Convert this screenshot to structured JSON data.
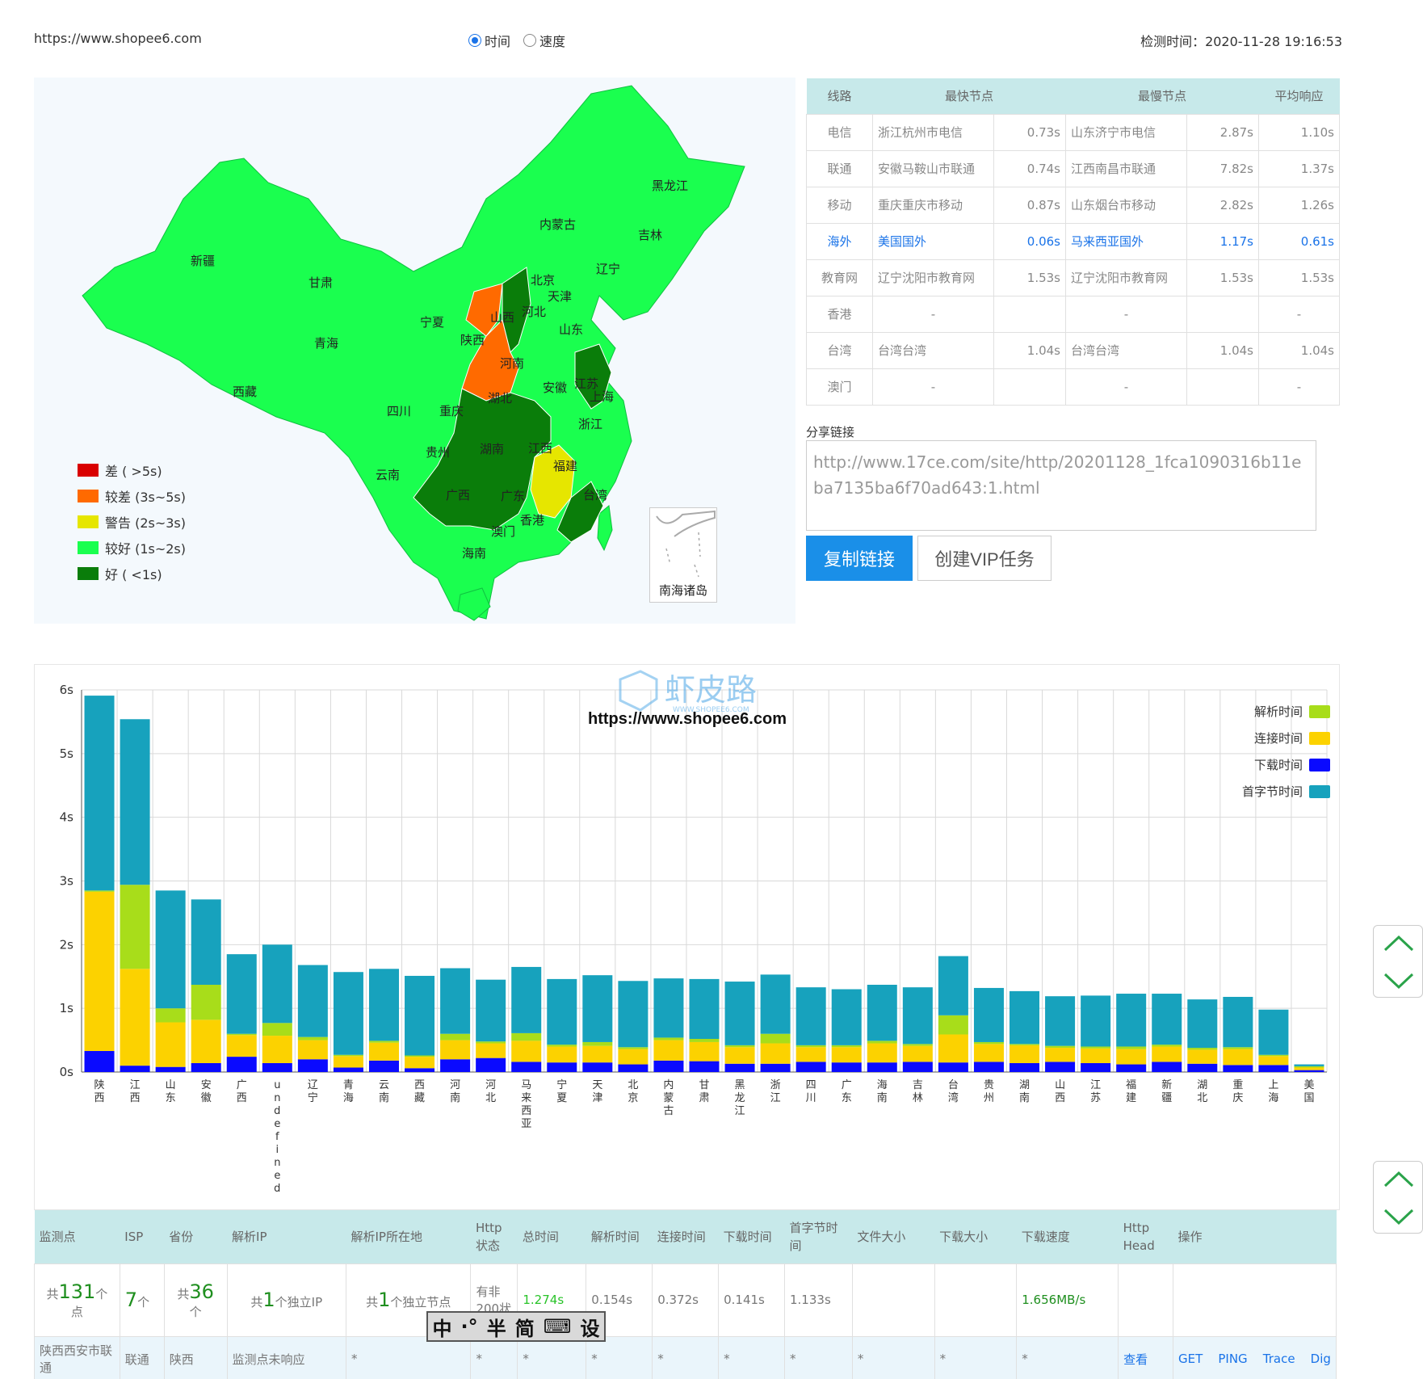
{
  "header": {
    "url": "https://www.shopee6.com",
    "radio_time": "时间",
    "radio_speed": "速度",
    "check_time": "检测时间：2020-11-28 19:16:53"
  },
  "map": {
    "legend": [
      {
        "label": "差 ( >5s)",
        "color": "#d90000"
      },
      {
        "label": "较差 (3s~5s)",
        "color": "#ff6a00"
      },
      {
        "label": "警告 (2s~3s)",
        "color": "#e6e600"
      },
      {
        "label": "较好 (1s~2s)",
        "color": "#1aff4f"
      },
      {
        "label": "好 ( <1s)",
        "color": "#0a7d0a"
      }
    ],
    "provinces": [
      "黑龙江",
      "吉林",
      "内蒙古",
      "辽宁",
      "新疆",
      "甘肃",
      "北京",
      "天津",
      "宁夏",
      "山西",
      "河北",
      "青海",
      "陕西",
      "山东",
      "河南",
      "西藏",
      "江苏",
      "安徽",
      "上海",
      "四川",
      "重庆",
      "湖北",
      "浙江",
      "贵州",
      "湖南",
      "江西",
      "云南",
      "福建",
      "广西",
      "广东",
      "台湾",
      "香港",
      "澳门",
      "海南"
    ],
    "nanhai": "南海诸岛"
  },
  "line_table": {
    "headers": [
      "线路",
      "最快节点",
      "最慢节点",
      "平均响应"
    ],
    "rows": [
      {
        "line": "电信",
        "fast": "浙江杭州市电信",
        "fast_t": "0.73s",
        "slow": "山东济宁市电信",
        "slow_t": "2.87s",
        "avg": "1.10s"
      },
      {
        "line": "联通",
        "fast": "安徽马鞍山市联通",
        "fast_t": "0.74s",
        "slow": "江西南昌市联通",
        "slow_t": "7.82s",
        "avg": "1.37s"
      },
      {
        "line": "移动",
        "fast": "重庆重庆市移动",
        "fast_t": "0.87s",
        "slow": "山东烟台市移动",
        "slow_t": "2.82s",
        "avg": "1.26s"
      },
      {
        "line": "海外",
        "fast": "美国国外",
        "fast_t": "0.06s",
        "slow": "马来西亚国外",
        "slow_t": "1.17s",
        "avg": "0.61s"
      },
      {
        "line": "教育网",
        "fast": "辽宁沈阳市教育网",
        "fast_t": "1.53s",
        "slow": "辽宁沈阳市教育网",
        "slow_t": "1.53s",
        "avg": "1.53s"
      },
      {
        "line": "香港",
        "fast": "-",
        "fast_t": "",
        "slow": "-",
        "slow_t": "",
        "avg": "-"
      },
      {
        "line": "台湾",
        "fast": "台湾台湾",
        "fast_t": "1.04s",
        "slow": "台湾台湾",
        "slow_t": "1.04s",
        "avg": "1.04s"
      },
      {
        "line": "澳门",
        "fast": "-",
        "fast_t": "",
        "slow": "-",
        "slow_t": "",
        "avg": "-"
      }
    ]
  },
  "share": {
    "label": "分享链接",
    "url": "http://www.17ce.com/site/http/20201128_1fca1090316b11eba7135ba6f70ad643:1.html",
    "copy_btn": "复制链接",
    "vip_btn": "创建VIP任务"
  },
  "chart_data": {
    "type": "bar",
    "stacked": true,
    "title": "https://www.shopee6.com",
    "watermark": "虾皮路",
    "watermark_sub": "WWW.SHOPEE6.COM",
    "ylim": [
      0,
      6
    ],
    "yticks": [
      "0s",
      "1s",
      "2s",
      "3s",
      "4s",
      "5s",
      "6s"
    ],
    "categories": [
      "陕西",
      "江西",
      "山东",
      "安徽",
      "广西",
      "undefined",
      "辽宁",
      "青海",
      "云南",
      "西藏",
      "河南",
      "河北",
      "马来西亚",
      "宁夏",
      "天津",
      "北京",
      "内蒙古",
      "甘肃",
      "黑龙江",
      "浙江",
      "四川",
      "广东",
      "海南",
      "吉林",
      "台湾",
      "贵州",
      "湖南",
      "山西",
      "江苏",
      "福建",
      "新疆",
      "湖北",
      "重庆",
      "上海",
      "美国"
    ],
    "series": [
      {
        "name": "下载时间",
        "color": "#0a0aff",
        "values": [
          0.33,
          0.1,
          0.08,
          0.14,
          0.24,
          0.14,
          0.2,
          0.07,
          0.18,
          0.06,
          0.2,
          0.22,
          0.16,
          0.15,
          0.15,
          0.12,
          0.18,
          0.17,
          0.13,
          0.13,
          0.16,
          0.15,
          0.15,
          0.16,
          0.15,
          0.16,
          0.14,
          0.16,
          0.14,
          0.12,
          0.16,
          0.13,
          0.11,
          0.11,
          0.03
        ]
      },
      {
        "name": "连接时间",
        "color": "#fcd200",
        "values": [
          2.5,
          1.52,
          0.7,
          0.68,
          0.34,
          0.43,
          0.3,
          0.18,
          0.28,
          0.18,
          0.3,
          0.23,
          0.33,
          0.25,
          0.26,
          0.24,
          0.32,
          0.3,
          0.26,
          0.32,
          0.23,
          0.24,
          0.3,
          0.25,
          0.44,
          0.28,
          0.28,
          0.22,
          0.23,
          0.24,
          0.24,
          0.22,
          0.25,
          0.14,
          0.04
        ]
      },
      {
        "name": "解析时间",
        "color": "#a8dd1a",
        "values": [
          0.02,
          1.32,
          0.22,
          0.55,
          0.02,
          0.2,
          0.05,
          0.02,
          0.03,
          0.02,
          0.1,
          0.03,
          0.12,
          0.03,
          0.06,
          0.03,
          0.04,
          0.05,
          0.03,
          0.15,
          0.03,
          0.03,
          0.04,
          0.03,
          0.3,
          0.03,
          0.02,
          0.03,
          0.03,
          0.04,
          0.03,
          0.03,
          0.03,
          0.02,
          0.02
        ]
      },
      {
        "name": "首字节时间",
        "color": "#17a2bd",
        "values": [
          3.06,
          2.6,
          1.85,
          1.34,
          1.25,
          1.23,
          1.13,
          1.3,
          1.13,
          1.25,
          1.03,
          0.97,
          1.04,
          1.03,
          1.05,
          1.04,
          0.93,
          0.94,
          1.0,
          0.93,
          0.91,
          0.88,
          0.88,
          0.89,
          0.93,
          0.85,
          0.83,
          0.78,
          0.8,
          0.83,
          0.8,
          0.76,
          0.79,
          0.71,
          0.03
        ]
      }
    ]
  },
  "result_table": {
    "headers": [
      "监测点",
      "ISP",
      "省份",
      "解析IP",
      "解析IP所在地",
      "Http状态",
      "总时间",
      "解析时间",
      "连接时间",
      "下载时间",
      "首字节时间",
      "文件大小",
      "下载大小",
      "下载速度",
      "Http Head",
      "操作"
    ],
    "summary": {
      "points_pre": "共",
      "points": "131",
      "points_unit": "个",
      "points_suffix": "点",
      "isp": "7",
      "isp_unit": "个",
      "prov_pre": "共",
      "prov": "36",
      "prov_unit": "个",
      "ip_pre": "共",
      "ip": "1",
      "ip_suffix": "个独立IP",
      "loc_pre": "共",
      "loc": "1",
      "loc_suffix": "个独立节点",
      "http": "有非200状",
      "total": "1.274s",
      "dns": "0.154s",
      "conn": "0.372s",
      "down": "0.141s",
      "ttfb": "1.133s",
      "speed": "1.656MB/s"
    },
    "row": {
      "point": "陕西西安市联通",
      "isp": "联通",
      "prov": "陕西",
      "ip": "监测点未响应",
      "star": "*",
      "view": "查看",
      "get": "GET",
      "ping": "PING",
      "trace": "Trace",
      "dig": "Dig"
    }
  },
  "ime": [
    "中",
    "·°",
    "半",
    "简",
    "⌨",
    "设"
  ]
}
